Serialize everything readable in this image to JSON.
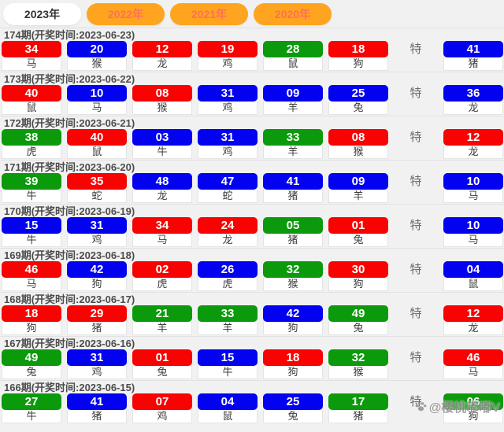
{
  "tabs": [
    {
      "label": "2023年",
      "active": true
    },
    {
      "label": "2022年",
      "active": false
    },
    {
      "label": "2021年",
      "active": false
    },
    {
      "label": "2020年",
      "active": false
    }
  ],
  "special_label": "特",
  "colors": {
    "red": "#F80202",
    "blue": "#0202F0",
    "green": "#0B9A0B",
    "tab_orange": "#FFA41E",
    "tab_inactive_text": "#FF6F55",
    "tab_active_bg": "#FFFFFF"
  },
  "watermark": {
    "icon": "paw-icon",
    "text": "@樱桃嘟嘟V"
  },
  "periods": [
    {
      "title": "174期(开奖时间:2023-06-23)",
      "balls": [
        {
          "num": "34",
          "color": "red",
          "zodiac": "马"
        },
        {
          "num": "20",
          "color": "blue",
          "zodiac": "猴"
        },
        {
          "num": "12",
          "color": "red",
          "zodiac": "龙"
        },
        {
          "num": "19",
          "color": "red",
          "zodiac": "鸡"
        },
        {
          "num": "28",
          "color": "green",
          "zodiac": "鼠"
        },
        {
          "num": "18",
          "color": "red",
          "zodiac": "狗"
        }
      ],
      "special": {
        "num": "41",
        "color": "blue",
        "zodiac": "猪"
      }
    },
    {
      "title": "173期(开奖时间:2023-06-22)",
      "balls": [
        {
          "num": "40",
          "color": "red",
          "zodiac": "鼠"
        },
        {
          "num": "10",
          "color": "blue",
          "zodiac": "马"
        },
        {
          "num": "08",
          "color": "red",
          "zodiac": "猴"
        },
        {
          "num": "31",
          "color": "blue",
          "zodiac": "鸡"
        },
        {
          "num": "09",
          "color": "blue",
          "zodiac": "羊"
        },
        {
          "num": "25",
          "color": "blue",
          "zodiac": "兔"
        }
      ],
      "special": {
        "num": "36",
        "color": "blue",
        "zodiac": "龙"
      }
    },
    {
      "title": "172期(开奖时间:2023-06-21)",
      "balls": [
        {
          "num": "38",
          "color": "green",
          "zodiac": "虎"
        },
        {
          "num": "40",
          "color": "red",
          "zodiac": "鼠"
        },
        {
          "num": "03",
          "color": "blue",
          "zodiac": "牛"
        },
        {
          "num": "31",
          "color": "blue",
          "zodiac": "鸡"
        },
        {
          "num": "33",
          "color": "green",
          "zodiac": "羊"
        },
        {
          "num": "08",
          "color": "red",
          "zodiac": "猴"
        }
      ],
      "special": {
        "num": "12",
        "color": "red",
        "zodiac": "龙"
      }
    },
    {
      "title": "171期(开奖时间:2023-06-20)",
      "balls": [
        {
          "num": "39",
          "color": "green",
          "zodiac": "牛"
        },
        {
          "num": "35",
          "color": "red",
          "zodiac": "蛇"
        },
        {
          "num": "48",
          "color": "blue",
          "zodiac": "龙"
        },
        {
          "num": "47",
          "color": "blue",
          "zodiac": "蛇"
        },
        {
          "num": "41",
          "color": "blue",
          "zodiac": "猪"
        },
        {
          "num": "09",
          "color": "blue",
          "zodiac": "羊"
        }
      ],
      "special": {
        "num": "10",
        "color": "blue",
        "zodiac": "马"
      }
    },
    {
      "title": "170期(开奖时间:2023-06-19)",
      "balls": [
        {
          "num": "15",
          "color": "blue",
          "zodiac": "牛"
        },
        {
          "num": "31",
          "color": "blue",
          "zodiac": "鸡"
        },
        {
          "num": "34",
          "color": "red",
          "zodiac": "马"
        },
        {
          "num": "24",
          "color": "red",
          "zodiac": "龙"
        },
        {
          "num": "05",
          "color": "green",
          "zodiac": "猪"
        },
        {
          "num": "01",
          "color": "red",
          "zodiac": "兔"
        }
      ],
      "special": {
        "num": "10",
        "color": "blue",
        "zodiac": "马"
      }
    },
    {
      "title": "169期(开奖时间:2023-06-18)",
      "balls": [
        {
          "num": "46",
          "color": "red",
          "zodiac": "马"
        },
        {
          "num": "42",
          "color": "blue",
          "zodiac": "狗"
        },
        {
          "num": "02",
          "color": "red",
          "zodiac": "虎"
        },
        {
          "num": "26",
          "color": "blue",
          "zodiac": "虎"
        },
        {
          "num": "32",
          "color": "green",
          "zodiac": "猴"
        },
        {
          "num": "30",
          "color": "red",
          "zodiac": "狗"
        }
      ],
      "special": {
        "num": "04",
        "color": "blue",
        "zodiac": "鼠"
      }
    },
    {
      "title": "168期(开奖时间:2023-06-17)",
      "balls": [
        {
          "num": "18",
          "color": "red",
          "zodiac": "狗"
        },
        {
          "num": "29",
          "color": "red",
          "zodiac": "猪"
        },
        {
          "num": "21",
          "color": "green",
          "zodiac": "羊"
        },
        {
          "num": "33",
          "color": "green",
          "zodiac": "羊"
        },
        {
          "num": "42",
          "color": "blue",
          "zodiac": "狗"
        },
        {
          "num": "49",
          "color": "green",
          "zodiac": "兔"
        }
      ],
      "special": {
        "num": "12",
        "color": "red",
        "zodiac": "龙"
      }
    },
    {
      "title": "167期(开奖时间:2023-06-16)",
      "balls": [
        {
          "num": "49",
          "color": "green",
          "zodiac": "兔"
        },
        {
          "num": "31",
          "color": "blue",
          "zodiac": "鸡"
        },
        {
          "num": "01",
          "color": "red",
          "zodiac": "兔"
        },
        {
          "num": "15",
          "color": "blue",
          "zodiac": "牛"
        },
        {
          "num": "18",
          "color": "red",
          "zodiac": "狗"
        },
        {
          "num": "32",
          "color": "green",
          "zodiac": "猴"
        }
      ],
      "special": {
        "num": "46",
        "color": "red",
        "zodiac": "马"
      }
    },
    {
      "title": "166期(开奖时间:2023-06-15)",
      "balls": [
        {
          "num": "27",
          "color": "green",
          "zodiac": "牛"
        },
        {
          "num": "41",
          "color": "blue",
          "zodiac": "猪"
        },
        {
          "num": "07",
          "color": "red",
          "zodiac": "鸡"
        },
        {
          "num": "04",
          "color": "blue",
          "zodiac": "鼠"
        },
        {
          "num": "25",
          "color": "blue",
          "zodiac": "兔"
        },
        {
          "num": "17",
          "color": "green",
          "zodiac": "猪"
        }
      ],
      "special": {
        "num": "06",
        "color": "green",
        "zodiac": "狗"
      }
    }
  ]
}
